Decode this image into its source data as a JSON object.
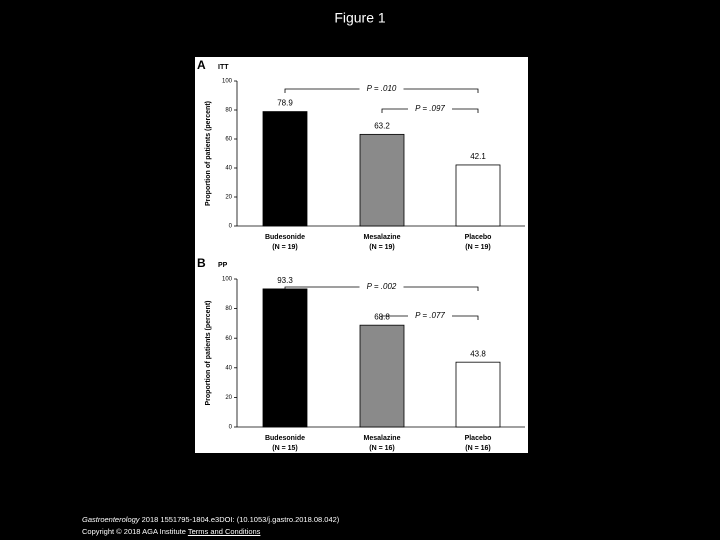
{
  "slide": {
    "title": "Figure 1",
    "citation": {
      "journal": "Gastroenterology",
      "reference": "2018 1551795-1804.e3DOI: (10.1053/j.gastro.2018.08.042)"
    },
    "copyright": "Copyright © 2018 AGA Institute",
    "link": "Terms and Conditions"
  },
  "chart_data": [
    {
      "type": "bar",
      "panel": "A",
      "subtitle": "ITT",
      "ylabel": "Proportion of patients (percent)",
      "categories": [
        "Budesonide",
        "Mesalazine",
        "Placebo"
      ],
      "n_labels": [
        "(N = 19)",
        "(N = 19)",
        "(N = 19)"
      ],
      "values": [
        78.9,
        63.2,
        42.1
      ],
      "colors": [
        "#000000",
        "#8a8a8a",
        "#ffffff"
      ],
      "ylim": [
        0,
        100
      ],
      "yticks": [
        0,
        20,
        40,
        60,
        80,
        100
      ],
      "annotations": [
        "P = .010",
        "P = .097"
      ]
    },
    {
      "type": "bar",
      "panel": "B",
      "subtitle": "PP",
      "ylabel": "Proportion of patients (percent)",
      "categories": [
        "Budesonide",
        "Mesalazine",
        "Placebo"
      ],
      "n_labels": [
        "(N = 15)",
        "(N = 16)",
        "(N = 16)"
      ],
      "values": [
        93.3,
        68.8,
        43.8
      ],
      "colors": [
        "#000000",
        "#8a8a8a",
        "#ffffff"
      ],
      "ylim": [
        0,
        100
      ],
      "yticks": [
        0,
        20,
        40,
        60,
        80,
        100
      ],
      "annotations": [
        "P = .002",
        "P = .077"
      ]
    }
  ]
}
